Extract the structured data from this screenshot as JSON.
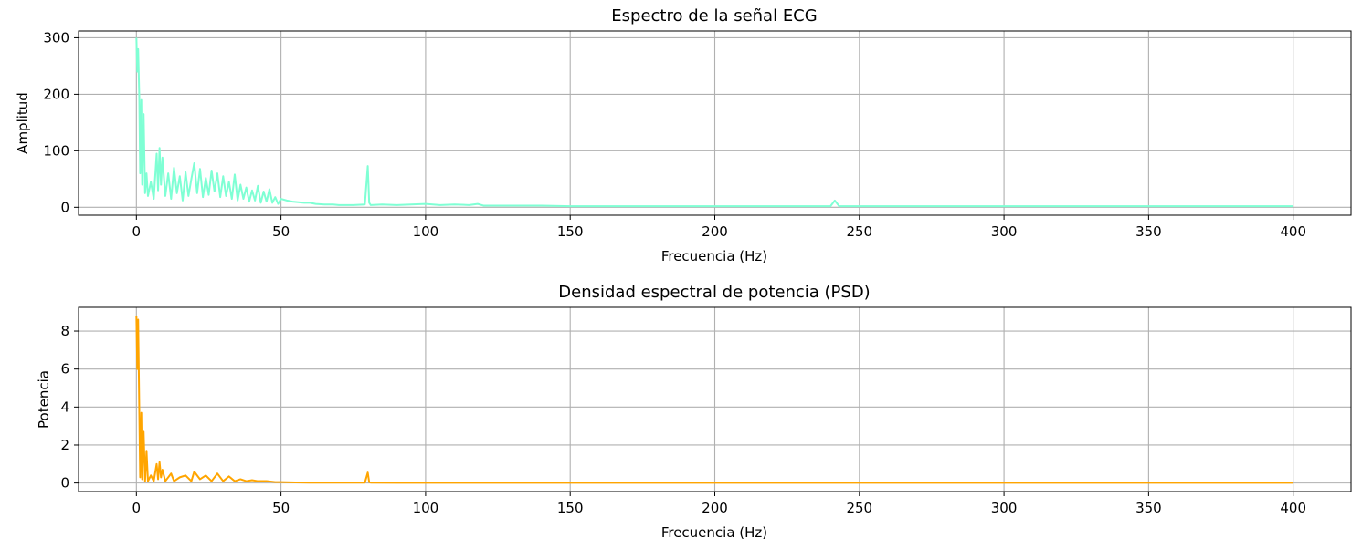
{
  "chart_data": [
    {
      "type": "line",
      "title": "Espectro de la señal ECG",
      "xlabel": "Frecuencia (Hz)",
      "ylabel": "Amplitud",
      "xlim": [
        -20,
        420
      ],
      "ylim": [
        -14,
        312
      ],
      "xticks": [
        0,
        50,
        100,
        150,
        200,
        250,
        300,
        350,
        400
      ],
      "yticks": [
        0,
        100,
        200,
        300
      ],
      "grid": true,
      "color": "#7fffd4",
      "series": [
        {
          "x": [
            0,
            0.3,
            0.6,
            1.0,
            1.3,
            1.7,
            2.0,
            2.5,
            3.0,
            3.5,
            4,
            5,
            6,
            7,
            7.5,
            8,
            8.5,
            9,
            10,
            11,
            12,
            13,
            14,
            15,
            16,
            17,
            18,
            19,
            20,
            21,
            22,
            23,
            24,
            25,
            26,
            27,
            28,
            29,
            30,
            31,
            32,
            33,
            34,
            35,
            36,
            37,
            38,
            39,
            40,
            41,
            42,
            43,
            44,
            45,
            46,
            47,
            48,
            49,
            50,
            52,
            54,
            56,
            58,
            60,
            62,
            65,
            68,
            70,
            75,
            79,
            80,
            80.5,
            81,
            85,
            90,
            95,
            100,
            105,
            110,
            115,
            118,
            120,
            125,
            130,
            140,
            150,
            175,
            200,
            225,
            240,
            241.5,
            243,
            250,
            300,
            350,
            400
          ],
          "y": [
            300,
            240,
            280,
            195,
            60,
            190,
            40,
            165,
            25,
            60,
            20,
            45,
            15,
            95,
            30,
            105,
            40,
            88,
            20,
            60,
            15,
            70,
            25,
            55,
            12,
            62,
            20,
            50,
            78,
            25,
            68,
            18,
            52,
            22,
            65,
            28,
            60,
            18,
            55,
            20,
            45,
            15,
            58,
            12,
            40,
            15,
            35,
            10,
            30,
            12,
            38,
            8,
            28,
            10,
            32,
            8,
            18,
            6,
            15,
            12,
            10,
            9,
            8,
            8,
            6,
            5,
            5,
            4,
            4,
            5,
            73,
            8,
            4,
            5,
            4,
            5,
            6,
            4,
            5,
            4,
            6,
            3,
            3,
            3,
            3,
            2,
            2,
            2,
            2,
            2,
            12,
            2,
            2,
            2,
            2,
            2
          ]
        }
      ]
    },
    {
      "type": "line",
      "title": "Densidad espectral de potencia (PSD)",
      "xlabel": "Frecuencia (Hz)",
      "ylabel": "Potencia",
      "xlim": [
        -20,
        420
      ],
      "ylim": [
        -0.45,
        9.25
      ],
      "xticks": [
        0,
        50,
        100,
        150,
        200,
        250,
        300,
        350,
        400
      ],
      "yticks": [
        0,
        2,
        4,
        6,
        8
      ],
      "grid": true,
      "color": "#ffa500",
      "series": [
        {
          "x": [
            0,
            0.3,
            0.6,
            1.0,
            1.3,
            1.7,
            2.0,
            2.5,
            3.0,
            3.5,
            4,
            5,
            6,
            7,
            7.5,
            8,
            8.5,
            9,
            10,
            12,
            13,
            15,
            17,
            19,
            20,
            22,
            24,
            26,
            28,
            30,
            32,
            34,
            36,
            38,
            40,
            42,
            45,
            48,
            50,
            55,
            60,
            70,
            79,
            80,
            80.5,
            81,
            90,
            100,
            150,
            200,
            250,
            300,
            350,
            400
          ],
          "y": [
            8.8,
            6.0,
            8.6,
            3.8,
            0.3,
            3.7,
            0.2,
            2.7,
            0.1,
            1.7,
            0.1,
            0.4,
            0.1,
            1.0,
            0.2,
            1.1,
            0.3,
            0.7,
            0.1,
            0.5,
            0.1,
            0.3,
            0.4,
            0.1,
            0.6,
            0.2,
            0.4,
            0.1,
            0.5,
            0.1,
            0.35,
            0.1,
            0.2,
            0.1,
            0.15,
            0.1,
            0.1,
            0.05,
            0.05,
            0.03,
            0.02,
            0.02,
            0.02,
            0.55,
            0.05,
            0.02,
            0.01,
            0.01,
            0.01,
            0.01,
            0.01,
            0.01,
            0.01,
            0.01
          ]
        }
      ]
    }
  ]
}
